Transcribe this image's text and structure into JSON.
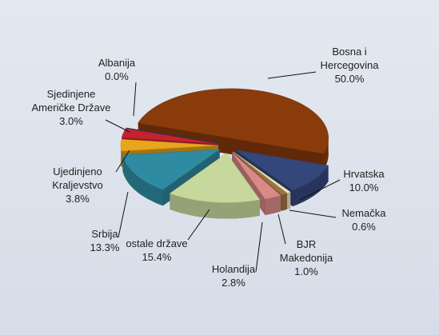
{
  "chart_data": {
    "type": "pie",
    "categories": [
      "Bosna i Hercegovina",
      "Hrvatska",
      "Nemačka",
      "BJR Makedonija",
      "Holandija",
      "ostale države",
      "Srbija",
      "Ujedinjeno Kraljevstvo",
      "Sjedinjene Američke Države",
      "Albanija"
    ],
    "values": [
      50.0,
      10.0,
      0.6,
      1.0,
      2.8,
      15.4,
      13.3,
      3.8,
      3.0,
      0.0
    ],
    "value_labels": [
      "50.0%",
      "10.0%",
      "0.6%",
      "1.0%",
      "2.8%",
      "15.4%",
      "13.3%",
      "3.8%",
      "3.0%",
      "0.0%"
    ],
    "colors": [
      "#8a3b0c",
      "#34477a",
      "#efe3b8",
      "#9c7440",
      "#d98a86",
      "#c6d89c",
      "#2f8ba1",
      "#e9a51b",
      "#c3232d",
      "#2b3f80"
    ]
  }
}
